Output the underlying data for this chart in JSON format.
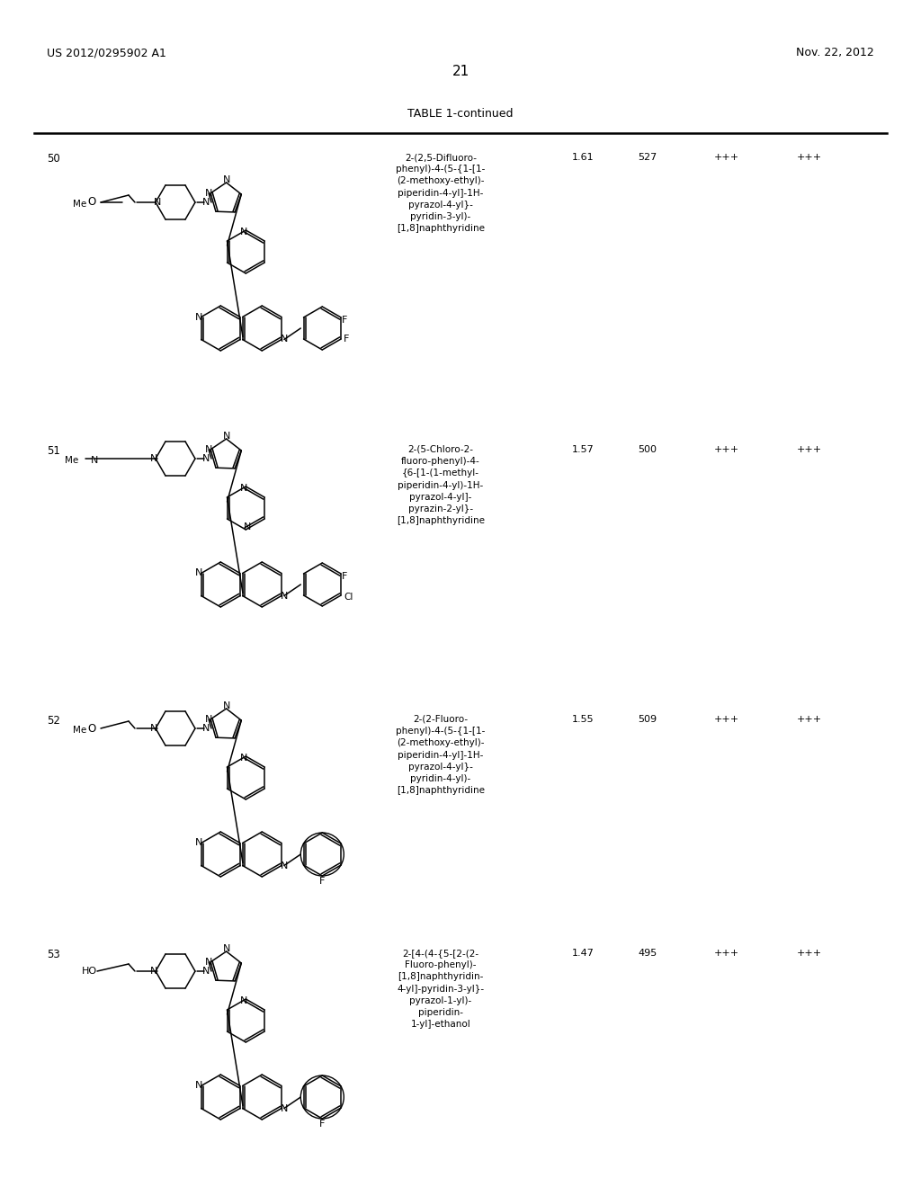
{
  "page_number": "21",
  "header_left": "US 2012/0295902 A1",
  "header_right": "Nov. 22, 2012",
  "table_title": "TABLE 1-continued",
  "background_color": "#ffffff",
  "text_color": "#000000",
  "rows": [
    {
      "compound_num": "50",
      "iupac_name": "2-(2,5-Difluoro-\nphenyl)-4-(5-{1-[1-\n(2-methoxy-ethyl)-\npiperidin-4-yl]-1H-\npyrazol-4-yl}-\npyridin-3-yl)-\n[1,8]naphthyridine",
      "rt": "1.61",
      "ms": "527",
      "col3": "+++",
      "col4": "+++"
    },
    {
      "compound_num": "51",
      "iupac_name": "2-(5-Chloro-2-\nfluoro-phenyl)-4-\n{6-[1-(1-methyl-\npiperidin-4-yl)-1H-\npyrazol-4-yl]-\npyrazin-2-yl}-\n[1,8]naphthyridine",
      "rt": "1.57",
      "ms": "500",
      "col3": "+++",
      "col4": "+++"
    },
    {
      "compound_num": "52",
      "iupac_name": "2-(2-Fluoro-\nphenyl)-4-(5-{1-[1-\n(2-methoxy-ethyl)-\npiperidin-4-yl]-1H-\npyrazol-4-yl}-\npyridin-4-yl)-\n[1,8]naphthyridine",
      "rt": "1.55",
      "ms": "509",
      "col3": "+++",
      "col4": "+++"
    },
    {
      "compound_num": "53",
      "iupac_name": "2-[4-(4-{5-[2-(2-\nFluoro-phenyl)-\n[1,8]naphthyridin-\n4-yl]-pyridin-3-yl}-\npyrazol-1-yl)-\npiperidin-\n1-yl]-ethanol",
      "rt": "1.47",
      "ms": "495",
      "col3": "+++",
      "col4": "+++"
    }
  ]
}
